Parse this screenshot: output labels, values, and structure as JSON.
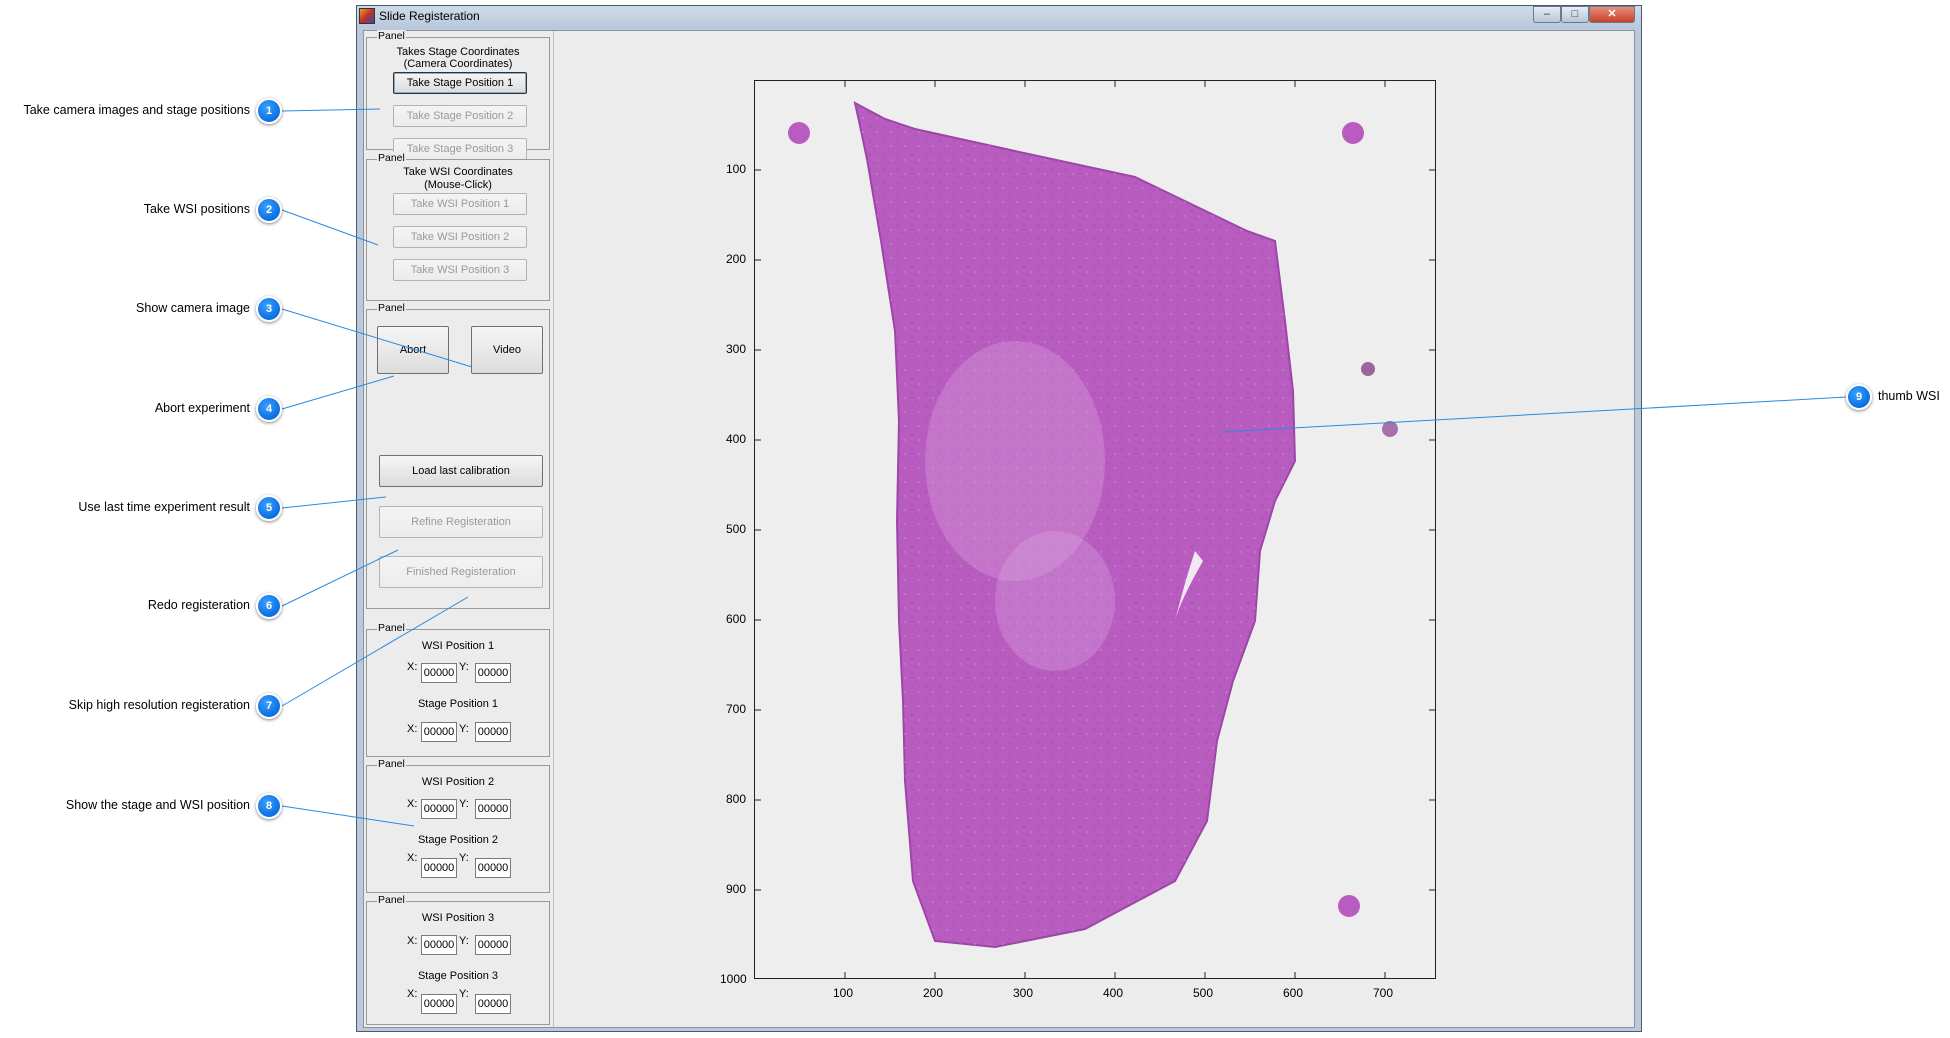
{
  "window": {
    "title": "Slide Registeration",
    "minimize_glyph": "–",
    "maximize_glyph": "□",
    "close_glyph": "✕"
  },
  "panels": {
    "label": "Panel",
    "stage": {
      "heading_1": "Takes Stage Coordinates",
      "heading_2": "(Camera Coordinates)",
      "btn1": "Take Stage Position 1",
      "btn2": "Take Stage Position 2",
      "btn3": "Take Stage Position 3"
    },
    "wsi": {
      "heading_1": "Take WSI Coordinates",
      "heading_2": "(Mouse-Click)",
      "btn1": "Take WSI Position 1",
      "btn2": "Take WSI Position 2",
      "btn3": "Take WSI Position 3"
    },
    "controls": {
      "abort": "Abort",
      "video": "Video",
      "load": "Load last calibration",
      "refine": "Refine Registeration",
      "finished": "Finished Registeration"
    },
    "positions": [
      {
        "wsi_title": "WSI Position 1",
        "stage_title": "Stage Position 1",
        "wsi_x": "00000",
        "wsi_y": "00000",
        "stage_x": "00000",
        "stage_y": "00000"
      },
      {
        "wsi_title": "WSI Position 2",
        "stage_title": "Stage Position 2",
        "wsi_x": "00000",
        "wsi_y": "00000",
        "stage_x": "00000",
        "stage_y": "00000"
      },
      {
        "wsi_title": "WSI Position 3",
        "stage_title": "Stage Position 3",
        "wsi_x": "00000",
        "wsi_y": "00000",
        "stage_x": "00000",
        "stage_y": "00000"
      }
    ],
    "x_label": "X:",
    "y_label": "Y:"
  },
  "plot": {
    "y_ticks": [
      "100",
      "200",
      "300",
      "400",
      "500",
      "600",
      "700",
      "800",
      "900",
      "1000"
    ],
    "x_ticks": [
      "100",
      "200",
      "300",
      "400",
      "500",
      "600",
      "700"
    ],
    "tissue_color": "#b85cc0"
  },
  "annotations": [
    {
      "num": "1",
      "text": "Take camera images and stage positions"
    },
    {
      "num": "2",
      "text": "Take WSI positions"
    },
    {
      "num": "3",
      "text": "Show camera image"
    },
    {
      "num": "4",
      "text": "Abort experiment"
    },
    {
      "num": "5",
      "text": "Use last time experiment result"
    },
    {
      "num": "6",
      "text": "Redo registeration"
    },
    {
      "num": "7",
      "text": "Skip high resolution registeration"
    },
    {
      "num": "8",
      "text": "Show the stage and WSI position"
    },
    {
      "num": "9",
      "text": "thumb WSI"
    }
  ],
  "colors": {
    "accent": "#0a6fe0",
    "line": "#2a8ae0"
  }
}
